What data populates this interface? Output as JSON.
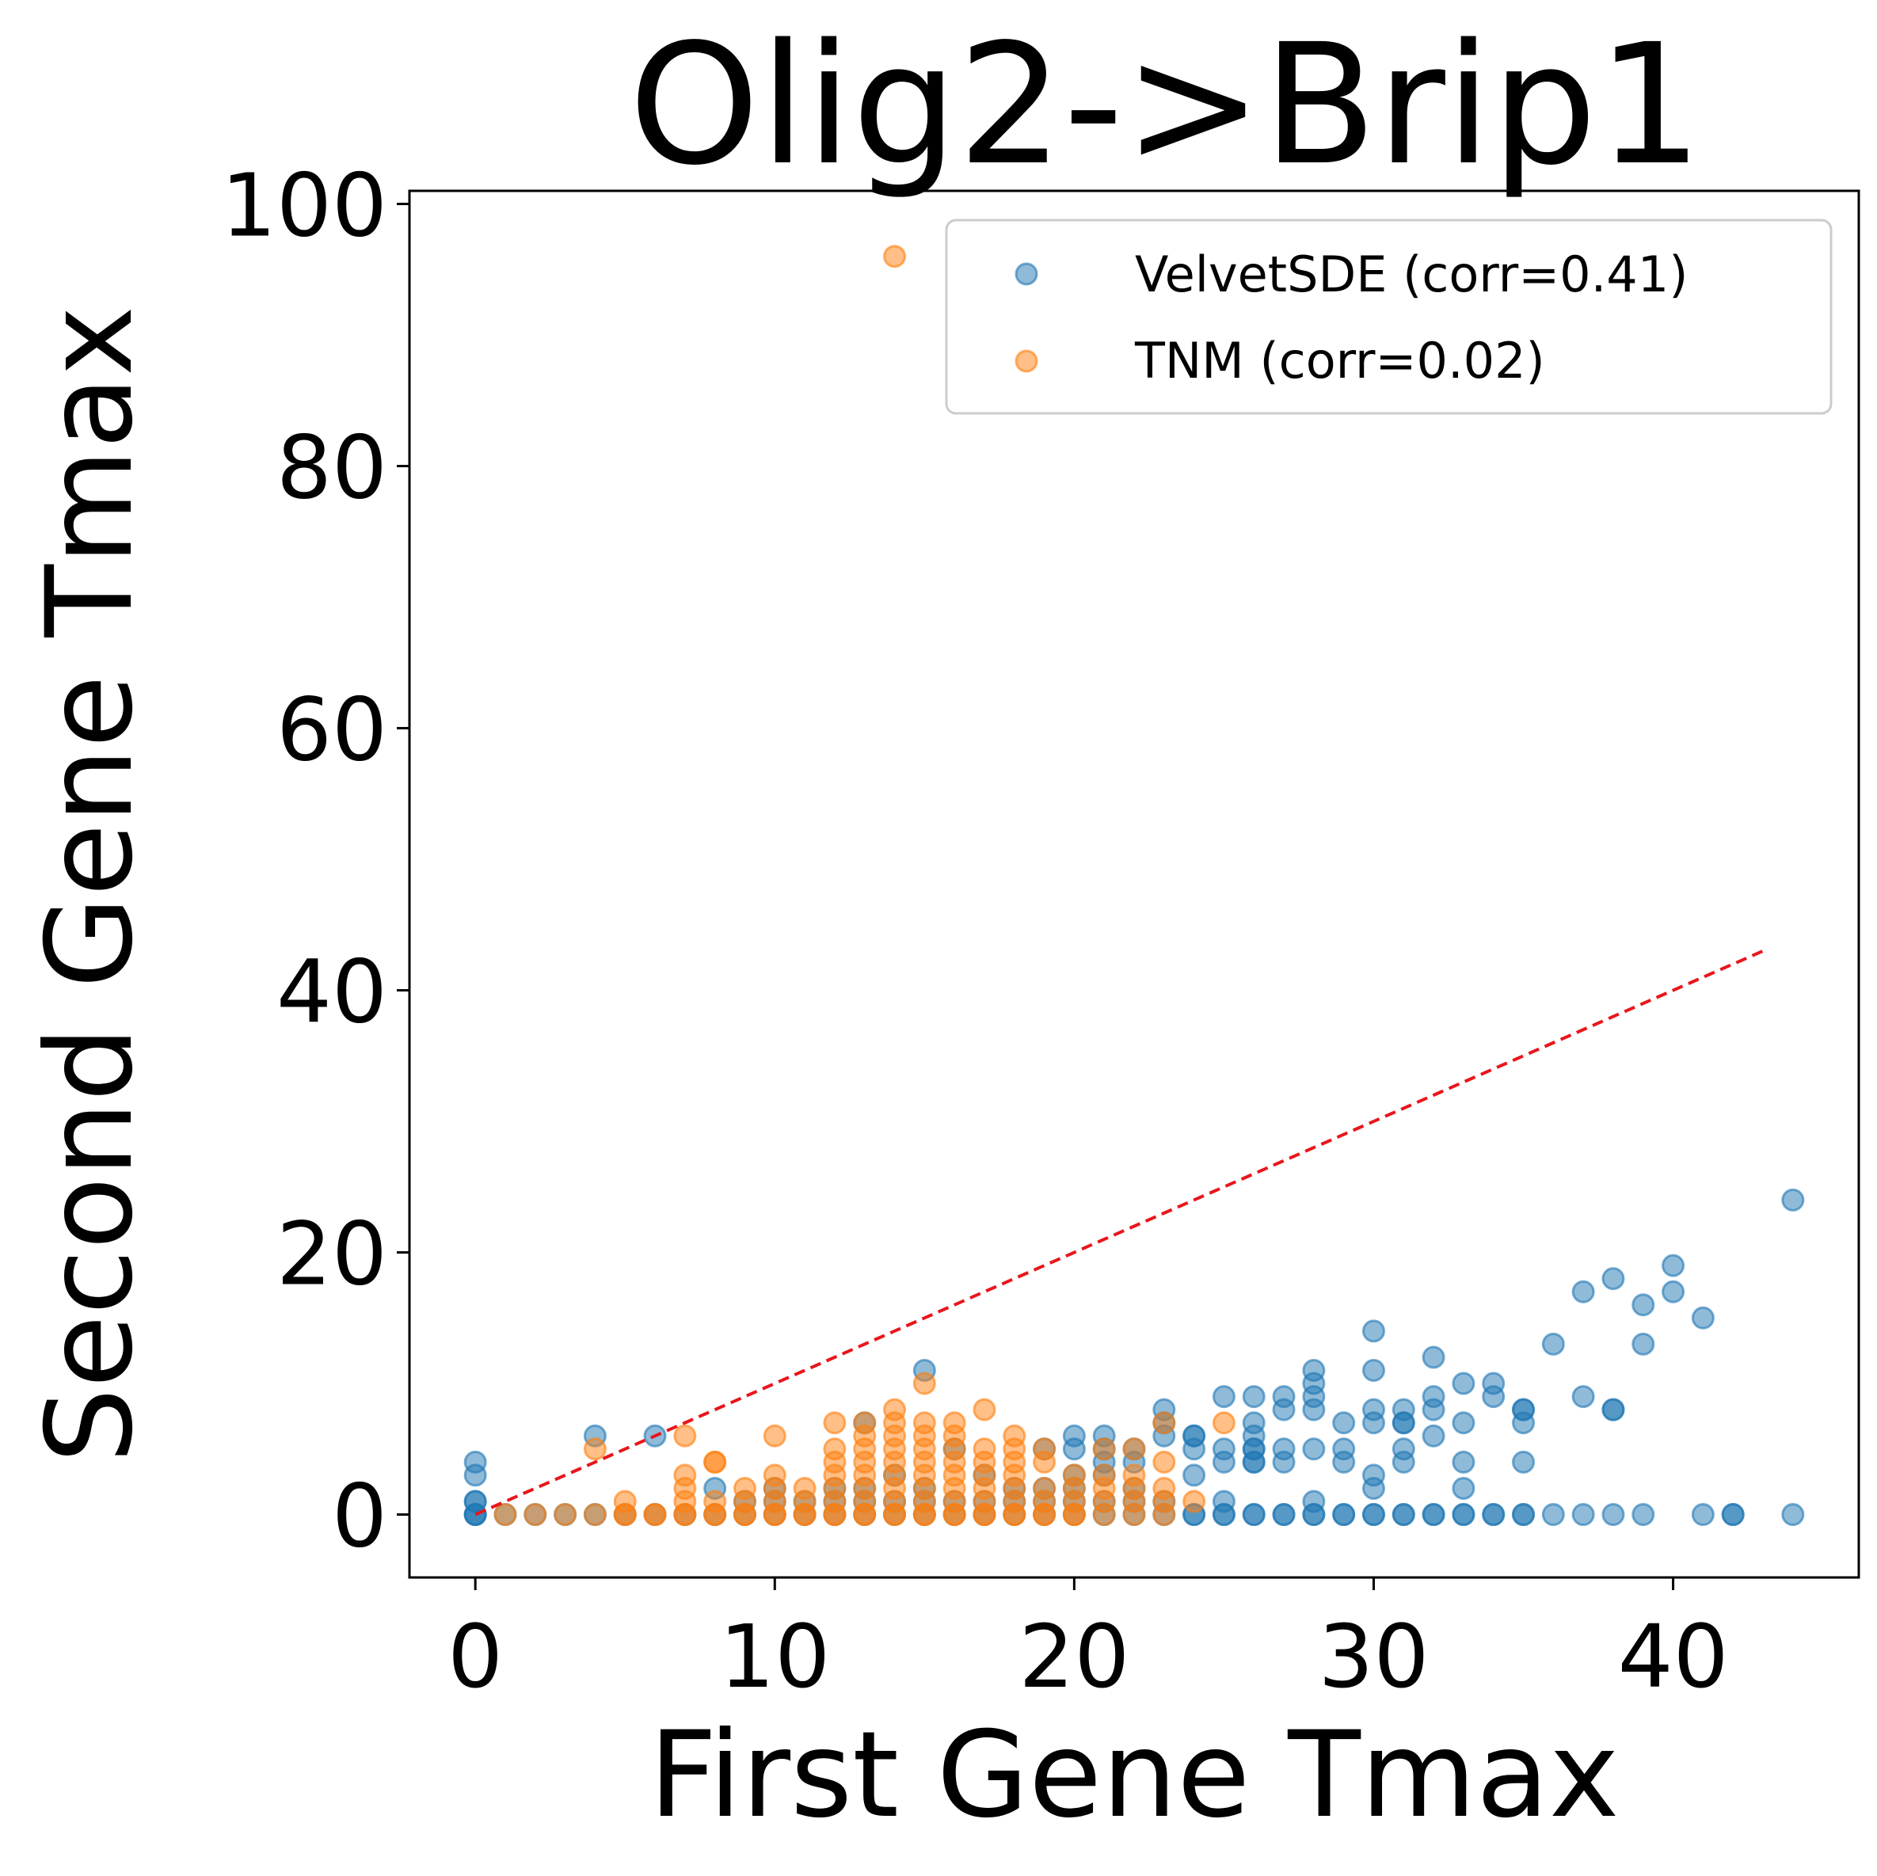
{
  "chart_data": {
    "type": "scatter",
    "title": "Olig2->Brip1",
    "xlabel": "First Gene Tmax",
    "ylabel": "Second Gene Tmax",
    "xlim": [
      -2.2,
      46.2
    ],
    "ylim": [
      -4.8,
      101
    ],
    "xticks": [
      0,
      10,
      20,
      30,
      40
    ],
    "yticks": [
      0,
      20,
      40,
      60,
      80,
      100
    ],
    "grid": false,
    "legend_position": "top-right",
    "reference_line": {
      "style": "dashed",
      "color": "#e8161b",
      "x": [
        0,
        43
      ],
      "y": [
        0,
        43
      ]
    },
    "series": [
      {
        "name": "VelvetSDE (corr=0.41)",
        "color": "#1f77b4",
        "opacity": 0.5,
        "points": [
          [
            0,
            0
          ],
          [
            0,
            0
          ],
          [
            0,
            0
          ],
          [
            0,
            1
          ],
          [
            0,
            1
          ],
          [
            0,
            3
          ],
          [
            0,
            4
          ],
          [
            1,
            0
          ],
          [
            2,
            0
          ],
          [
            3,
            0
          ],
          [
            4,
            0
          ],
          [
            4,
            6
          ],
          [
            5,
            0
          ],
          [
            6,
            0
          ],
          [
            6,
            6
          ],
          [
            7,
            0
          ],
          [
            8,
            0
          ],
          [
            8,
            2
          ],
          [
            9,
            0
          ],
          [
            9,
            1
          ],
          [
            10,
            0
          ],
          [
            10,
            1
          ],
          [
            10,
            2
          ],
          [
            11,
            0
          ],
          [
            11,
            1
          ],
          [
            12,
            0
          ],
          [
            12,
            1
          ],
          [
            12,
            2
          ],
          [
            13,
            0
          ],
          [
            13,
            1
          ],
          [
            13,
            2
          ],
          [
            13,
            7
          ],
          [
            14,
            0
          ],
          [
            14,
            1
          ],
          [
            14,
            3
          ],
          [
            15,
            0
          ],
          [
            15,
            1
          ],
          [
            15,
            2
          ],
          [
            15,
            11
          ],
          [
            16,
            0
          ],
          [
            16,
            1
          ],
          [
            16,
            5
          ],
          [
            17,
            0
          ],
          [
            17,
            1
          ],
          [
            17,
            3
          ],
          [
            18,
            0
          ],
          [
            18,
            1
          ],
          [
            18,
            2
          ],
          [
            19,
            0
          ],
          [
            19,
            1
          ],
          [
            19,
            2
          ],
          [
            19,
            5
          ],
          [
            20,
            0
          ],
          [
            20,
            1
          ],
          [
            20,
            2
          ],
          [
            20,
            3
          ],
          [
            20,
            5
          ],
          [
            20,
            6
          ],
          [
            21,
            0
          ],
          [
            21,
            1
          ],
          [
            21,
            3
          ],
          [
            21,
            4
          ],
          [
            21,
            5
          ],
          [
            21,
            6
          ],
          [
            22,
            0
          ],
          [
            22,
            1
          ],
          [
            22,
            2
          ],
          [
            22,
            4
          ],
          [
            22,
            5
          ],
          [
            23,
            0
          ],
          [
            23,
            1
          ],
          [
            23,
            6
          ],
          [
            23,
            7
          ],
          [
            23,
            8
          ],
          [
            24,
            0
          ],
          [
            24,
            0
          ],
          [
            24,
            3
          ],
          [
            24,
            5
          ],
          [
            24,
            6
          ],
          [
            24,
            6
          ],
          [
            25,
            0
          ],
          [
            25,
            0
          ],
          [
            25,
            1
          ],
          [
            25,
            4
          ],
          [
            25,
            5
          ],
          [
            25,
            9
          ],
          [
            26,
            0
          ],
          [
            26,
            0
          ],
          [
            26,
            4
          ],
          [
            26,
            4
          ],
          [
            26,
            5
          ],
          [
            26,
            5
          ],
          [
            26,
            6
          ],
          [
            26,
            7
          ],
          [
            26,
            9
          ],
          [
            27,
            0
          ],
          [
            27,
            0
          ],
          [
            27,
            4
          ],
          [
            27,
            5
          ],
          [
            27,
            8
          ],
          [
            27,
            9
          ],
          [
            28,
            0
          ],
          [
            28,
            0
          ],
          [
            28,
            1
          ],
          [
            28,
            5
          ],
          [
            28,
            8
          ],
          [
            28,
            9
          ],
          [
            28,
            10
          ],
          [
            28,
            11
          ],
          [
            29,
            0
          ],
          [
            29,
            0
          ],
          [
            29,
            4
          ],
          [
            29,
            5
          ],
          [
            29,
            7
          ],
          [
            30,
            0
          ],
          [
            30,
            0
          ],
          [
            30,
            2
          ],
          [
            30,
            3
          ],
          [
            30,
            7
          ],
          [
            30,
            8
          ],
          [
            30,
            11
          ],
          [
            30,
            14
          ],
          [
            31,
            0
          ],
          [
            31,
            0
          ],
          [
            31,
            4
          ],
          [
            31,
            5
          ],
          [
            31,
            7
          ],
          [
            31,
            7
          ],
          [
            31,
            8
          ],
          [
            32,
            0
          ],
          [
            32,
            0
          ],
          [
            32,
            6
          ],
          [
            32,
            8
          ],
          [
            32,
            9
          ],
          [
            32,
            12
          ],
          [
            33,
            0
          ],
          [
            33,
            0
          ],
          [
            33,
            2
          ],
          [
            33,
            4
          ],
          [
            33,
            7
          ],
          [
            33,
            10
          ],
          [
            34,
            0
          ],
          [
            34,
            0
          ],
          [
            34,
            9
          ],
          [
            34,
            10
          ],
          [
            35,
            0
          ],
          [
            35,
            0
          ],
          [
            35,
            4
          ],
          [
            35,
            7
          ],
          [
            35,
            8
          ],
          [
            35,
            8
          ],
          [
            36,
            0
          ],
          [
            36,
            13
          ],
          [
            37,
            0
          ],
          [
            37,
            9
          ],
          [
            37,
            17
          ],
          [
            38,
            0
          ],
          [
            38,
            8
          ],
          [
            38,
            8
          ],
          [
            38,
            18
          ],
          [
            39,
            0
          ],
          [
            39,
            13
          ],
          [
            39,
            16
          ],
          [
            40,
            17
          ],
          [
            40,
            19
          ],
          [
            41,
            0
          ],
          [
            41,
            15
          ],
          [
            42,
            0
          ],
          [
            42,
            0
          ],
          [
            44,
            0
          ],
          [
            44,
            24
          ]
        ]
      },
      {
        "name": "TNM (corr=0.02)",
        "color": "#ff7f0e",
        "opacity": 0.5,
        "points": [
          [
            1,
            0
          ],
          [
            2,
            0
          ],
          [
            3,
            0
          ],
          [
            4,
            0
          ],
          [
            4,
            5
          ],
          [
            5,
            0
          ],
          [
            5,
            0
          ],
          [
            5,
            1
          ],
          [
            6,
            0
          ],
          [
            6,
            0
          ],
          [
            7,
            0
          ],
          [
            7,
            0
          ],
          [
            7,
            1
          ],
          [
            7,
            2
          ],
          [
            7,
            3
          ],
          [
            7,
            6
          ],
          [
            8,
            0
          ],
          [
            8,
            0
          ],
          [
            8,
            1
          ],
          [
            8,
            4
          ],
          [
            8,
            4
          ],
          [
            9,
            0
          ],
          [
            9,
            0
          ],
          [
            9,
            1
          ],
          [
            9,
            2
          ],
          [
            10,
            0
          ],
          [
            10,
            0
          ],
          [
            10,
            1
          ],
          [
            10,
            2
          ],
          [
            10,
            3
          ],
          [
            10,
            6
          ],
          [
            11,
            0
          ],
          [
            11,
            0
          ],
          [
            11,
            1
          ],
          [
            11,
            2
          ],
          [
            12,
            0
          ],
          [
            12,
            0
          ],
          [
            12,
            1
          ],
          [
            12,
            2
          ],
          [
            12,
            3
          ],
          [
            12,
            4
          ],
          [
            12,
            5
          ],
          [
            12,
            7
          ],
          [
            13,
            0
          ],
          [
            13,
            0
          ],
          [
            13,
            1
          ],
          [
            13,
            2
          ],
          [
            13,
            3
          ],
          [
            13,
            4
          ],
          [
            13,
            5
          ],
          [
            13,
            6
          ],
          [
            13,
            7
          ],
          [
            14,
            0
          ],
          [
            14,
            0
          ],
          [
            14,
            1
          ],
          [
            14,
            2
          ],
          [
            14,
            3
          ],
          [
            14,
            4
          ],
          [
            14,
            5
          ],
          [
            14,
            6
          ],
          [
            14,
            7
          ],
          [
            14,
            8
          ],
          [
            14,
            96
          ],
          [
            15,
            0
          ],
          [
            15,
            0
          ],
          [
            15,
            1
          ],
          [
            15,
            2
          ],
          [
            15,
            3
          ],
          [
            15,
            4
          ],
          [
            15,
            5
          ],
          [
            15,
            6
          ],
          [
            15,
            7
          ],
          [
            15,
            10
          ],
          [
            16,
            0
          ],
          [
            16,
            0
          ],
          [
            16,
            1
          ],
          [
            16,
            2
          ],
          [
            16,
            3
          ],
          [
            16,
            4
          ],
          [
            16,
            5
          ],
          [
            16,
            6
          ],
          [
            16,
            7
          ],
          [
            17,
            0
          ],
          [
            17,
            0
          ],
          [
            17,
            1
          ],
          [
            17,
            2
          ],
          [
            17,
            3
          ],
          [
            17,
            4
          ],
          [
            17,
            5
          ],
          [
            17,
            8
          ],
          [
            18,
            0
          ],
          [
            18,
            0
          ],
          [
            18,
            1
          ],
          [
            18,
            2
          ],
          [
            18,
            3
          ],
          [
            18,
            4
          ],
          [
            18,
            5
          ],
          [
            18,
            6
          ],
          [
            19,
            0
          ],
          [
            19,
            0
          ],
          [
            19,
            1
          ],
          [
            19,
            2
          ],
          [
            19,
            4
          ],
          [
            19,
            5
          ],
          [
            20,
            0
          ],
          [
            20,
            0
          ],
          [
            20,
            1
          ],
          [
            20,
            2
          ],
          [
            20,
            3
          ],
          [
            21,
            0
          ],
          [
            21,
            1
          ],
          [
            21,
            2
          ],
          [
            21,
            3
          ],
          [
            21,
            5
          ],
          [
            22,
            0
          ],
          [
            22,
            1
          ],
          [
            22,
            2
          ],
          [
            22,
            3
          ],
          [
            22,
            5
          ],
          [
            23,
            0
          ],
          [
            23,
            1
          ],
          [
            23,
            2
          ],
          [
            23,
            4
          ],
          [
            23,
            7
          ],
          [
            24,
            1
          ],
          [
            25,
            7
          ]
        ]
      }
    ]
  }
}
